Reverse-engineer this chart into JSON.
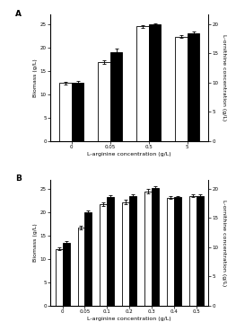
{
  "panel_A": {
    "label": "A",
    "x_labels": [
      "0",
      "0.05",
      "0.5",
      "5"
    ],
    "biomass_white": [
      12.4,
      16.8,
      24.5,
      22.3
    ],
    "biomass_black": [
      12.5,
      19.0,
      24.9,
      23.1
    ],
    "biomass_err_white": [
      0.3,
      0.4,
      0.3,
      0.3
    ],
    "biomass_err_black": [
      0.3,
      0.7,
      0.3,
      0.3
    ],
    "ylim": [
      0,
      27
    ],
    "yticks": [
      0,
      5,
      10,
      15,
      20,
      25
    ],
    "y2lim": [
      0,
      21.6
    ],
    "y2ticks": [
      0,
      5,
      10,
      15,
      20
    ],
    "xlabel": "L-arginine concentration (g/L)",
    "ylabel": "Biomass (g/L)",
    "ylabel2": "L-ornithine concentration (g/L)"
  },
  "panel_B": {
    "label": "B",
    "x_labels": [
      "0",
      "0.05",
      "0.1",
      "0.2",
      "0.3",
      "0.4",
      "0.5"
    ],
    "biomass_white": [
      12.2,
      16.7,
      21.7,
      22.2,
      24.5,
      23.1,
      23.5
    ],
    "biomass_black": [
      13.5,
      20.0,
      23.2,
      23.5,
      25.1,
      23.2,
      23.5
    ],
    "biomass_err_white": [
      0.3,
      0.4,
      0.4,
      0.5,
      0.5,
      0.3,
      0.3
    ],
    "biomass_err_black": [
      0.3,
      0.4,
      0.4,
      0.4,
      0.5,
      0.3,
      0.3
    ],
    "ylim": [
      0,
      27
    ],
    "yticks": [
      0,
      5,
      10,
      15,
      20,
      25
    ],
    "y2lim": [
      0,
      21.6
    ],
    "y2ticks": [
      0,
      5,
      10,
      15,
      20
    ],
    "xlabel": "L-arginine concentration (g/L)",
    "ylabel": "Biomass (g/L)",
    "ylabel2": "L-ornithine concentration (g/L)"
  },
  "bar_width": 0.32,
  "white_color": "white",
  "black_color": "black",
  "edge_color": "black",
  "fontsize_label": 4.5,
  "fontsize_tick": 4.0,
  "fontsize_panel": 6.5
}
